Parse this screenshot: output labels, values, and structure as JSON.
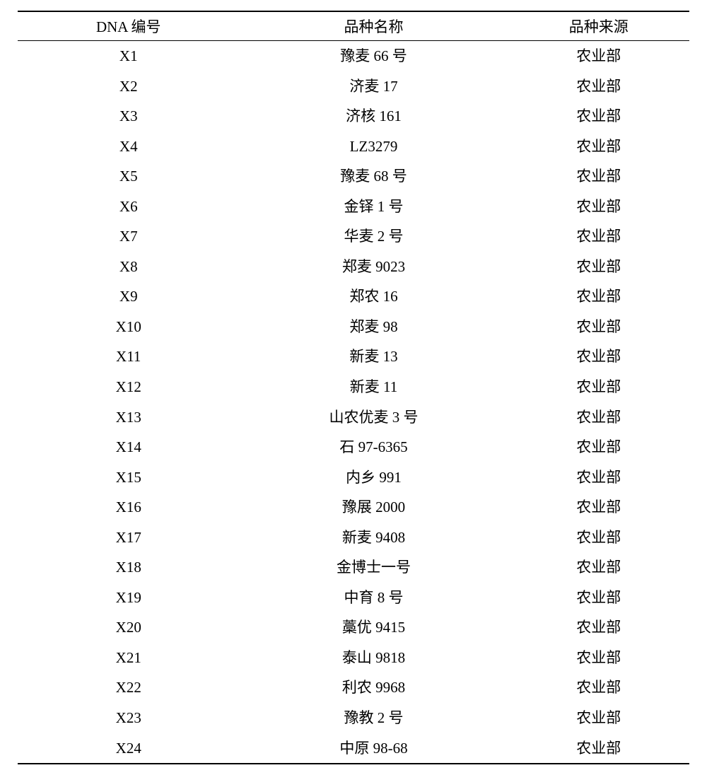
{
  "table": {
    "columns": [
      "DNA 编号",
      "品种名称",
      "品种来源"
    ],
    "rows": [
      [
        "X1",
        "豫麦 66 号",
        "农业部"
      ],
      [
        "X2",
        "济麦 17",
        "农业部"
      ],
      [
        "X3",
        "济核 161",
        "农业部"
      ],
      [
        "X4",
        "LZ3279",
        "农业部"
      ],
      [
        "X5",
        "豫麦 68 号",
        "农业部"
      ],
      [
        "X6",
        "金铎 1 号",
        "农业部"
      ],
      [
        "X7",
        "华麦 2 号",
        "农业部"
      ],
      [
        "X8",
        "郑麦 9023",
        "农业部"
      ],
      [
        "X9",
        "郑农 16",
        "农业部"
      ],
      [
        "X10",
        "郑麦 98",
        "农业部"
      ],
      [
        "X11",
        "新麦 13",
        "农业部"
      ],
      [
        "X12",
        "新麦 11",
        "农业部"
      ],
      [
        "X13",
        "山农优麦 3 号",
        "农业部"
      ],
      [
        "X14",
        "石 97-6365",
        "农业部"
      ],
      [
        "X15",
        "内乡 991",
        "农业部"
      ],
      [
        "X16",
        "豫展 2000",
        "农业部"
      ],
      [
        "X17",
        "新麦 9408",
        "农业部"
      ],
      [
        "X18",
        "金博士一号",
        "农业部"
      ],
      [
        "X19",
        "中育 8 号",
        "农业部"
      ],
      [
        "X20",
        "藁优 9415",
        "农业部"
      ],
      [
        "X21",
        "泰山 9818",
        "农业部"
      ],
      [
        "X22",
        "利农 9968",
        "农业部"
      ],
      [
        "X23",
        "豫教 2 号",
        "农业部"
      ],
      [
        "X24",
        "中原 98-68",
        "农业部"
      ]
    ],
    "styling": {
      "border_color": "#000000",
      "background_color": "#ffffff",
      "text_color": "#000000",
      "font_family": "SimSun",
      "header_fontsize": 21,
      "cell_fontsize": 21,
      "top_border_width": 2,
      "header_bottom_border_width": 1.5,
      "bottom_border_width": 2,
      "column_widths_pct": [
        33,
        40,
        27
      ],
      "row_line_height": 1.55
    }
  }
}
